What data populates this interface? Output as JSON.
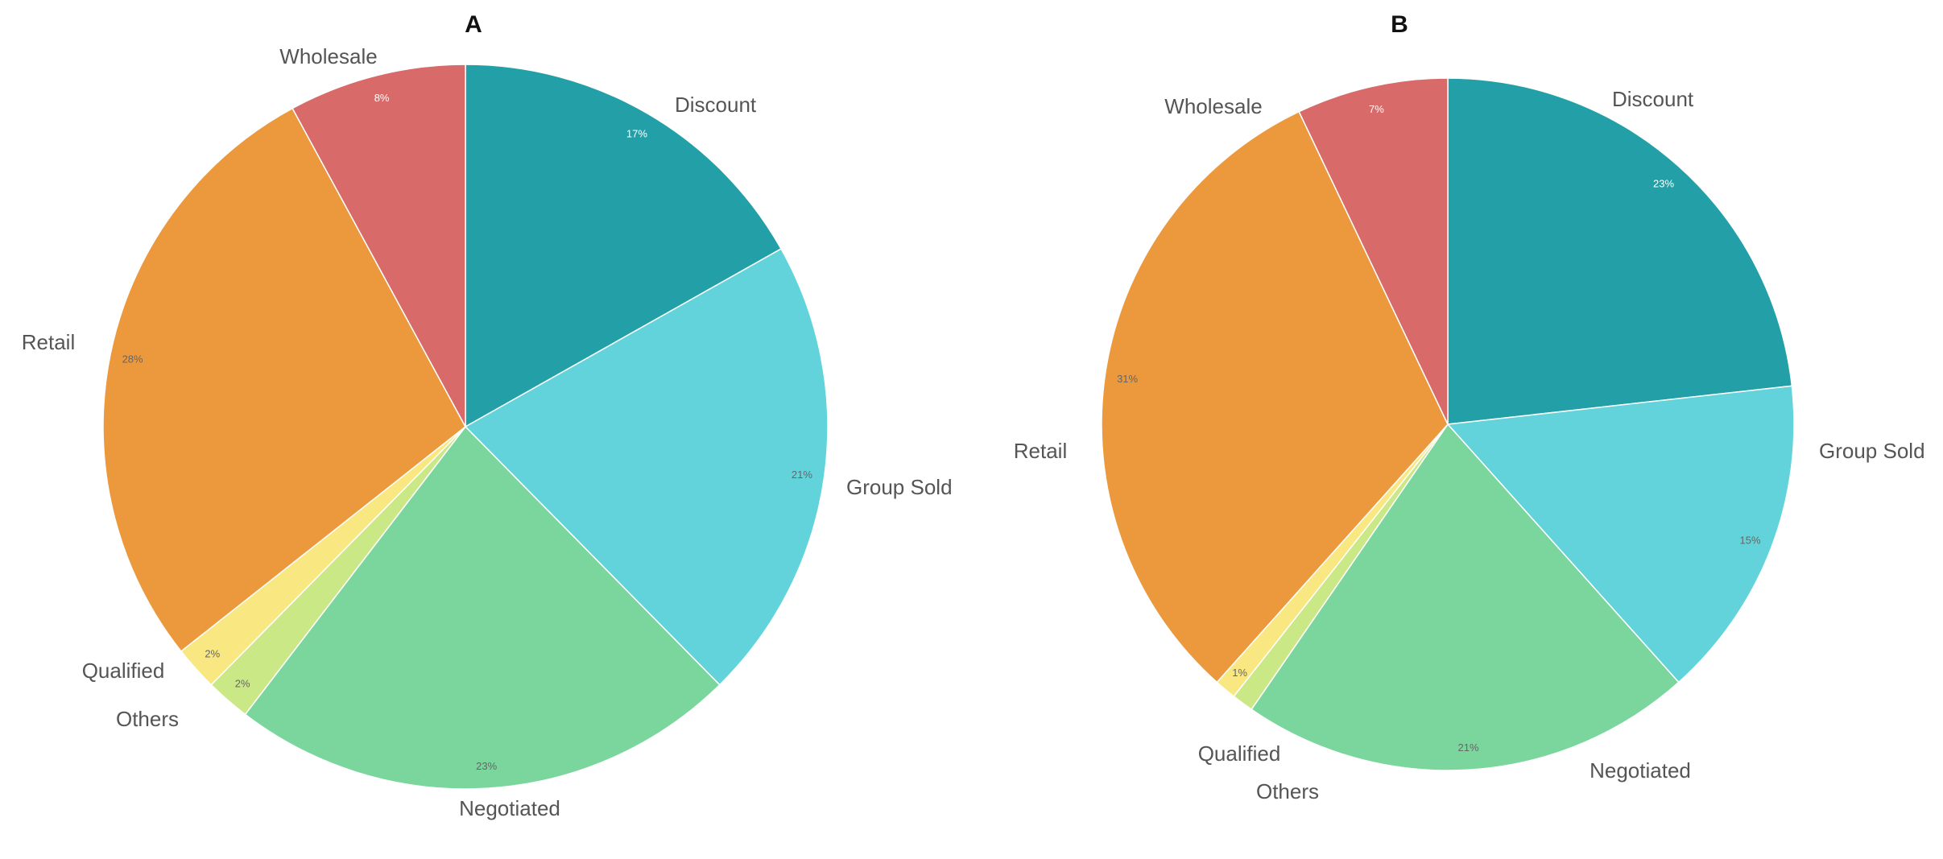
{
  "colors": {
    "Discount": "#23a0a7",
    "Group Sold": "#63d3db",
    "Negotiated": "#7ad69c",
    "Others": "#cbe887",
    "Qualified": "#f9e782",
    "Retail": "#ec983c",
    "Wholesale": "#d86a6a"
  },
  "chart_data": [
    {
      "type": "pie",
      "title": "A",
      "slices": [
        {
          "label": "Discount",
          "value": 17,
          "pct_label": "17%"
        },
        {
          "label": "Group Sold",
          "value": 21,
          "pct_label": "21%"
        },
        {
          "label": "Negotiated",
          "value": 23,
          "pct_label": "23%"
        },
        {
          "label": "Others",
          "value": 2,
          "pct_label": "2%"
        },
        {
          "label": "Qualified",
          "value": 2,
          "pct_label": "2%"
        },
        {
          "label": "Retail",
          "value": 28,
          "pct_label": "28%"
        },
        {
          "label": "Wholesale",
          "value": 8,
          "pct_label": "8%"
        }
      ]
    },
    {
      "type": "pie",
      "title": "B",
      "slices": [
        {
          "label": "Discount",
          "value": 23,
          "pct_label": "23%"
        },
        {
          "label": "Group Sold",
          "value": 15,
          "pct_label": "15%"
        },
        {
          "label": "Negotiated",
          "value": 21,
          "pct_label": "21%"
        },
        {
          "label": "Others",
          "value": 1,
          "pct_label": ""
        },
        {
          "label": "Qualified",
          "value": 1,
          "pct_label": "1%"
        },
        {
          "label": "Retail",
          "value": 31,
          "pct_label": "31%"
        },
        {
          "label": "Wholesale",
          "value": 7,
          "pct_label": "7%"
        }
      ]
    }
  ]
}
